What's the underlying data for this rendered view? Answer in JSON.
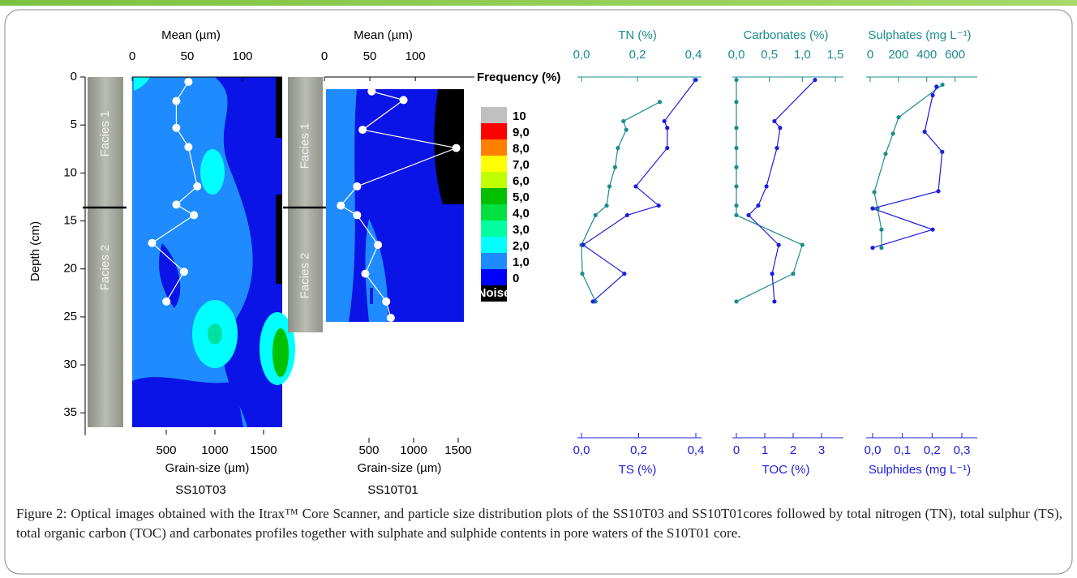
{
  "chart_data": [
    {
      "type": "contour-profile",
      "title": "SS10T03",
      "x_label": "Mean (µm)",
      "x2_label": "Grain-size (µm)",
      "y_label": "Depth (cm)",
      "facies": [
        "Facies 1",
        "Facies 2"
      ],
      "color": "#ffffff",
      "x": [
        51,
        40,
        40,
        51,
        59,
        40,
        56,
        18,
        47,
        31
      ],
      "y": [
        0.5,
        2.5,
        5.3,
        7.3,
        11.4,
        13.3,
        14.4,
        17.3,
        20.3,
        23.4
      ],
      "xlim": [
        0,
        136
      ],
      "xticks": [
        0,
        50,
        100
      ],
      "x2lim": [
        150,
        1692
      ],
      "x2ticks": [
        500,
        1000,
        1500
      ],
      "ylim": [
        0,
        36.5
      ],
      "yticks": [
        0,
        5,
        10,
        15,
        20,
        25,
        30,
        35
      ]
    },
    {
      "type": "contour-profile",
      "title": "SS10T01",
      "x_label": "Mean (µm)",
      "x2_label": "Grain-size (µm)",
      "frequency_label": "Frequency (%)",
      "facies": [
        "Facies 1",
        "Facies 2"
      ],
      "color": "#ffffff",
      "x": [
        52,
        87,
        42,
        145,
        36,
        18,
        36,
        59,
        45,
        68,
        73
      ],
      "y": [
        1.5,
        2.4,
        5.5,
        7.4,
        11.4,
        13.4,
        14.4,
        17.5,
        20.5,
        23.4,
        25.1
      ],
      "xlim": [
        0,
        165
      ],
      "xticks": [
        0,
        50,
        100
      ],
      "x2lim": [
        0,
        1682
      ],
      "x2ticks": [
        500,
        1000,
        1500
      ],
      "ylim": [
        0,
        36.5
      ],
      "colorbar": {
        "labels": [
          "10",
          "9,0",
          "8,0",
          "7,0",
          "6,0",
          "5,0",
          "4,0",
          "3,0",
          "2,0",
          "1,0",
          "0",
          "Noise"
        ],
        "colors": [
          "#c0c0c0",
          "#ff0000",
          "#ff8000",
          "#ffff00",
          "#c0ff00",
          "#00c000",
          "#00e040",
          "#00ffa0",
          "#00ffff",
          "#1e8cff",
          "#0000ff",
          "#000000"
        ]
      }
    },
    {
      "type": "dual-profile",
      "x_label": "TN (%)",
      "x2_label": "TS (%)",
      "xlim": [
        0,
        0.4
      ],
      "x2lim": [
        0,
        0.4
      ],
      "ylim": [
        0,
        36.5
      ],
      "xticks": [
        {
          "value": 0,
          "label": "0,0"
        },
        {
          "value": 0.2,
          "label": "0,2"
        },
        {
          "value": 0.4,
          "label": "0,4"
        }
      ],
      "x2ticks": [
        {
          "value": 0,
          "label": "0,0"
        },
        {
          "value": 0.2,
          "label": "0,2"
        },
        {
          "value": 0.4,
          "label": "0,4"
        }
      ],
      "series": [
        {
          "axis": "x",
          "color": "#1a8c8c",
          "x": [
            0.28,
            0.15,
            0.16,
            0.13,
            0.12,
            0.1,
            0.09,
            0.05,
            0,
            0.003,
            0.05
          ],
          "y": [
            2.6,
            4.6,
            5.5,
            7.4,
            9.4,
            11.4,
            13.4,
            14.4,
            17.5,
            20.5,
            23.4
          ]
        },
        {
          "axis": "x2",
          "color": "#1c1ce0",
          "x": [
            0.4,
            0.29,
            0.3,
            0.3,
            0.19,
            0.27,
            0.16,
            0.006,
            0.15,
            0.04
          ],
          "y": [
            0.3,
            4.6,
            5.3,
            7.4,
            11.4,
            13.4,
            14.4,
            17.5,
            20.5,
            23.4
          ]
        }
      ]
    },
    {
      "type": "dual-profile",
      "x_label": "Carbonates (%)",
      "x2_label": "TOC (%)",
      "xlim": [
        0,
        1.5
      ],
      "x2lim": [
        0,
        3
      ],
      "ylim": [
        0,
        36.5
      ],
      "xticks": [
        {
          "value": 0,
          "label": "0,0"
        },
        {
          "value": 0.5,
          "label": "0,5"
        },
        {
          "value": 1,
          "label": "1,0"
        },
        {
          "value": 1.5,
          "label": "1,5"
        }
      ],
      "x2ticks": [
        0,
        1,
        2,
        3
      ],
      "series": [
        {
          "axis": "x",
          "color": "#1a8c8c",
          "x": [
            0,
            0,
            0,
            0,
            0,
            0,
            0,
            0,
            1.0,
            0.86,
            0
          ],
          "y": [
            0.3,
            2.6,
            5.3,
            7.4,
            9.4,
            11.4,
            13.4,
            14.4,
            17.5,
            20.5,
            23.4
          ]
        },
        {
          "axis": "x2",
          "color": "#1c1ce0",
          "x": [
            2.77,
            1.34,
            1.54,
            1.43,
            1.06,
            0.77,
            0.43,
            1.49,
            1.26,
            1.34
          ],
          "y": [
            0.3,
            4.6,
            5.3,
            7.4,
            11.4,
            13.4,
            14.4,
            17.5,
            20.5,
            23.4
          ]
        }
      ]
    },
    {
      "type": "dual-profile",
      "x_label": "Sulphates (mg L⁻¹)",
      "x2_label": "Sulphides (mg L⁻¹)",
      "xlim": [
        0,
        700
      ],
      "x2lim": [
        0,
        0.3
      ],
      "ylim": [
        0,
        36.5
      ],
      "xticks": [
        0,
        200,
        400,
        600
      ],
      "x2ticks": [
        {
          "value": 0,
          "label": "0,0"
        },
        {
          "value": 0.1,
          "label": "0,1"
        },
        {
          "value": 0.2,
          "label": "0,2"
        },
        {
          "value": 0.3,
          "label": "0,3"
        }
      ],
      "series": [
        {
          "axis": "x",
          "color": "#1a8c8c",
          "x": [
            511,
            201,
            161,
            109,
            29,
            52,
            80,
            80
          ],
          "y": [
            0.8,
            4.2,
            5.9,
            8,
            12,
            13.7,
            15.9,
            17.8
          ]
        },
        {
          "axis": "x2",
          "color": "#1c1ce0",
          "x": [
            0.215,
            0.202,
            0.175,
            0.234,
            0.221,
            0,
            0.202,
            0
          ],
          "y": [
            1.0,
            1.9,
            5.7,
            7.8,
            11.9,
            13.7,
            15.9,
            17.8
          ]
        }
      ]
    }
  ],
  "caption": "Figure 2: Optical images obtained with the Itrax™ Core Scanner, and particle size distribution plots of the SS10T03 and SS10T01cores followed by total nitrogen (TN), total sulphur (TS), total organic carbon (TOC) and carbonates profiles together with sulphate and sulphide contents in pore waters of the S10T01 core."
}
